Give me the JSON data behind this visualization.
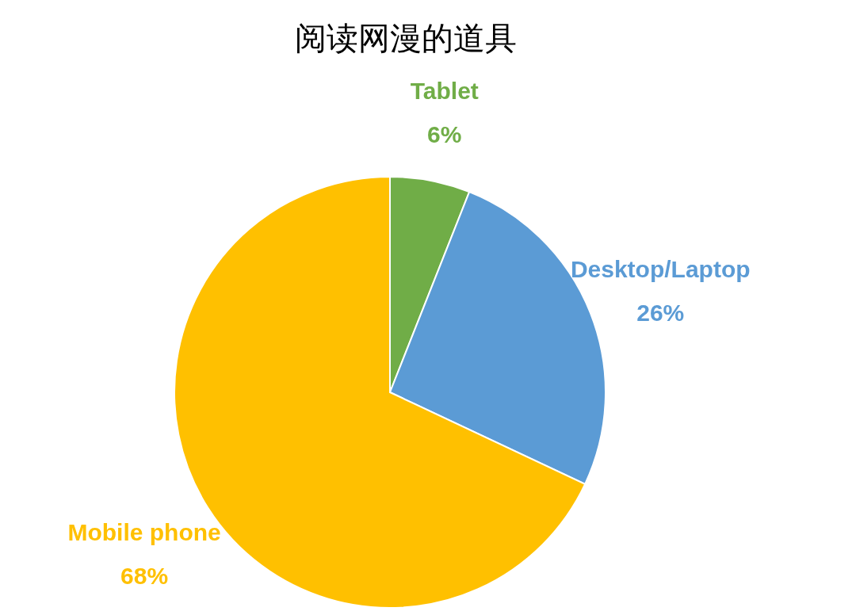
{
  "chart_data": {
    "type": "pie",
    "title": "阅读网漫的道具",
    "categories": [
      "Tablet",
      "Desktop/Laptop",
      "Mobile phone"
    ],
    "values": [
      6,
      26,
      68
    ],
    "colors": [
      "#70ad47",
      "#5b9bd5",
      "#ffc000"
    ],
    "value_labels": [
      "6%",
      "26%",
      "68%"
    ]
  }
}
